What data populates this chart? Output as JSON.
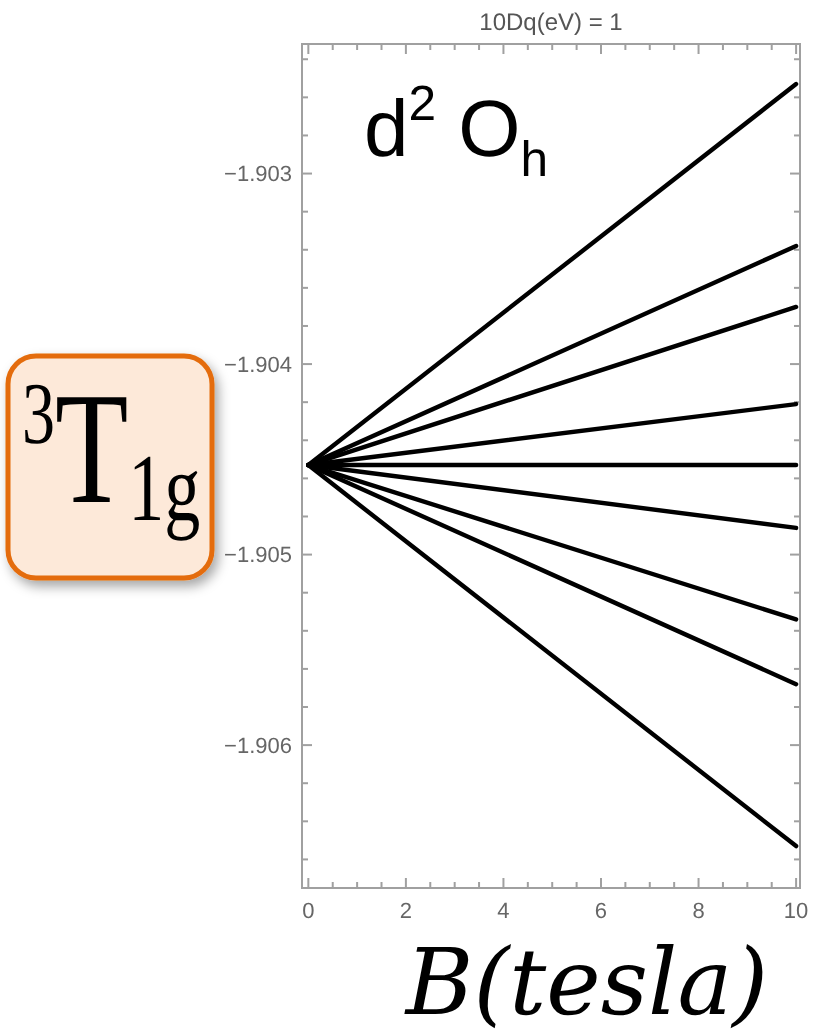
{
  "chart_data": {
    "type": "line",
    "title": "10Dq(eV) = 1",
    "xlabel": "B(tesla)",
    "annotations": [
      "d$^{2}$ O$_{h}$",
      "$^{3}$T$_{1g}$"
    ],
    "x": [
      0,
      10
    ],
    "series": [
      {
        "color": "#000000",
        "values": [
          -1.90453,
          -1.90253
        ]
      },
      {
        "color": "#000000",
        "values": [
          -1.90453,
          -1.90338
        ]
      },
      {
        "color": "#000000",
        "values": [
          -1.90453,
          -1.9037
        ]
      },
      {
        "color": "#000000",
        "values": [
          -1.90453,
          -1.90421
        ]
      },
      {
        "color": "#000000",
        "values": [
          -1.90453,
          -1.90453
        ]
      },
      {
        "color": "#000000",
        "values": [
          -1.90453,
          -1.90486
        ]
      },
      {
        "color": "#000000",
        "values": [
          -1.90453,
          -1.90534
        ]
      },
      {
        "color": "#000000",
        "values": [
          -1.90453,
          -1.90568
        ]
      },
      {
        "color": "#000000",
        "values": [
          -1.90453,
          -1.90653
        ]
      }
    ],
    "xlim": [
      -0.13,
      10.08
    ],
    "ylim": [
      -1.90675,
      -1.90232
    ],
    "xticks": [
      0,
      {
        "value": 0.5,
        "label": null
      },
      {
        "value": 1,
        "label": null
      },
      {
        "value": 1.5,
        "label": null
      },
      2,
      {
        "value": 2.5,
        "label": null
      },
      {
        "value": 3,
        "label": null
      },
      {
        "value": 3.5,
        "label": null
      },
      4,
      {
        "value": 4.5,
        "label": null
      },
      {
        "value": 5,
        "label": null
      },
      {
        "value": 5.5,
        "label": null
      },
      6,
      {
        "value": 6.5,
        "label": null
      },
      {
        "value": 7,
        "label": null
      },
      {
        "value": 7.5,
        "label": null
      },
      8,
      {
        "value": 8.5,
        "label": null
      },
      {
        "value": 9,
        "label": null
      },
      {
        "value": 9.5,
        "label": null
      },
      10
    ],
    "yticks": [
      {
        "value": -1.9066,
        "label": null
      },
      {
        "value": -1.9064,
        "label": null
      },
      {
        "value": -1.9062,
        "label": null
      },
      {
        "value": -1.906,
        "label": "−1.906"
      },
      {
        "value": -1.9058,
        "label": null
      },
      {
        "value": -1.9056,
        "label": null
      },
      {
        "value": -1.9054,
        "label": null
      },
      {
        "value": -1.9052,
        "label": null
      },
      {
        "value": -1.905,
        "label": "−1.905"
      },
      {
        "value": -1.9048,
        "label": null
      },
      {
        "value": -1.9046,
        "label": null
      },
      {
        "value": -1.9044,
        "label": null
      },
      {
        "value": -1.9042,
        "label": null
      },
      {
        "value": -1.904,
        "label": "−1.904"
      },
      {
        "value": -1.9038,
        "label": null
      },
      {
        "value": -1.9036,
        "label": null
      },
      {
        "value": -1.9034,
        "label": null
      },
      {
        "value": -1.9032,
        "label": null
      },
      {
        "value": -1.903,
        "label": "−1.903"
      },
      {
        "value": -1.9028,
        "label": null
      },
      {
        "value": -1.9026,
        "label": null
      },
      {
        "value": -1.9024,
        "label": null
      }
    ]
  }
}
